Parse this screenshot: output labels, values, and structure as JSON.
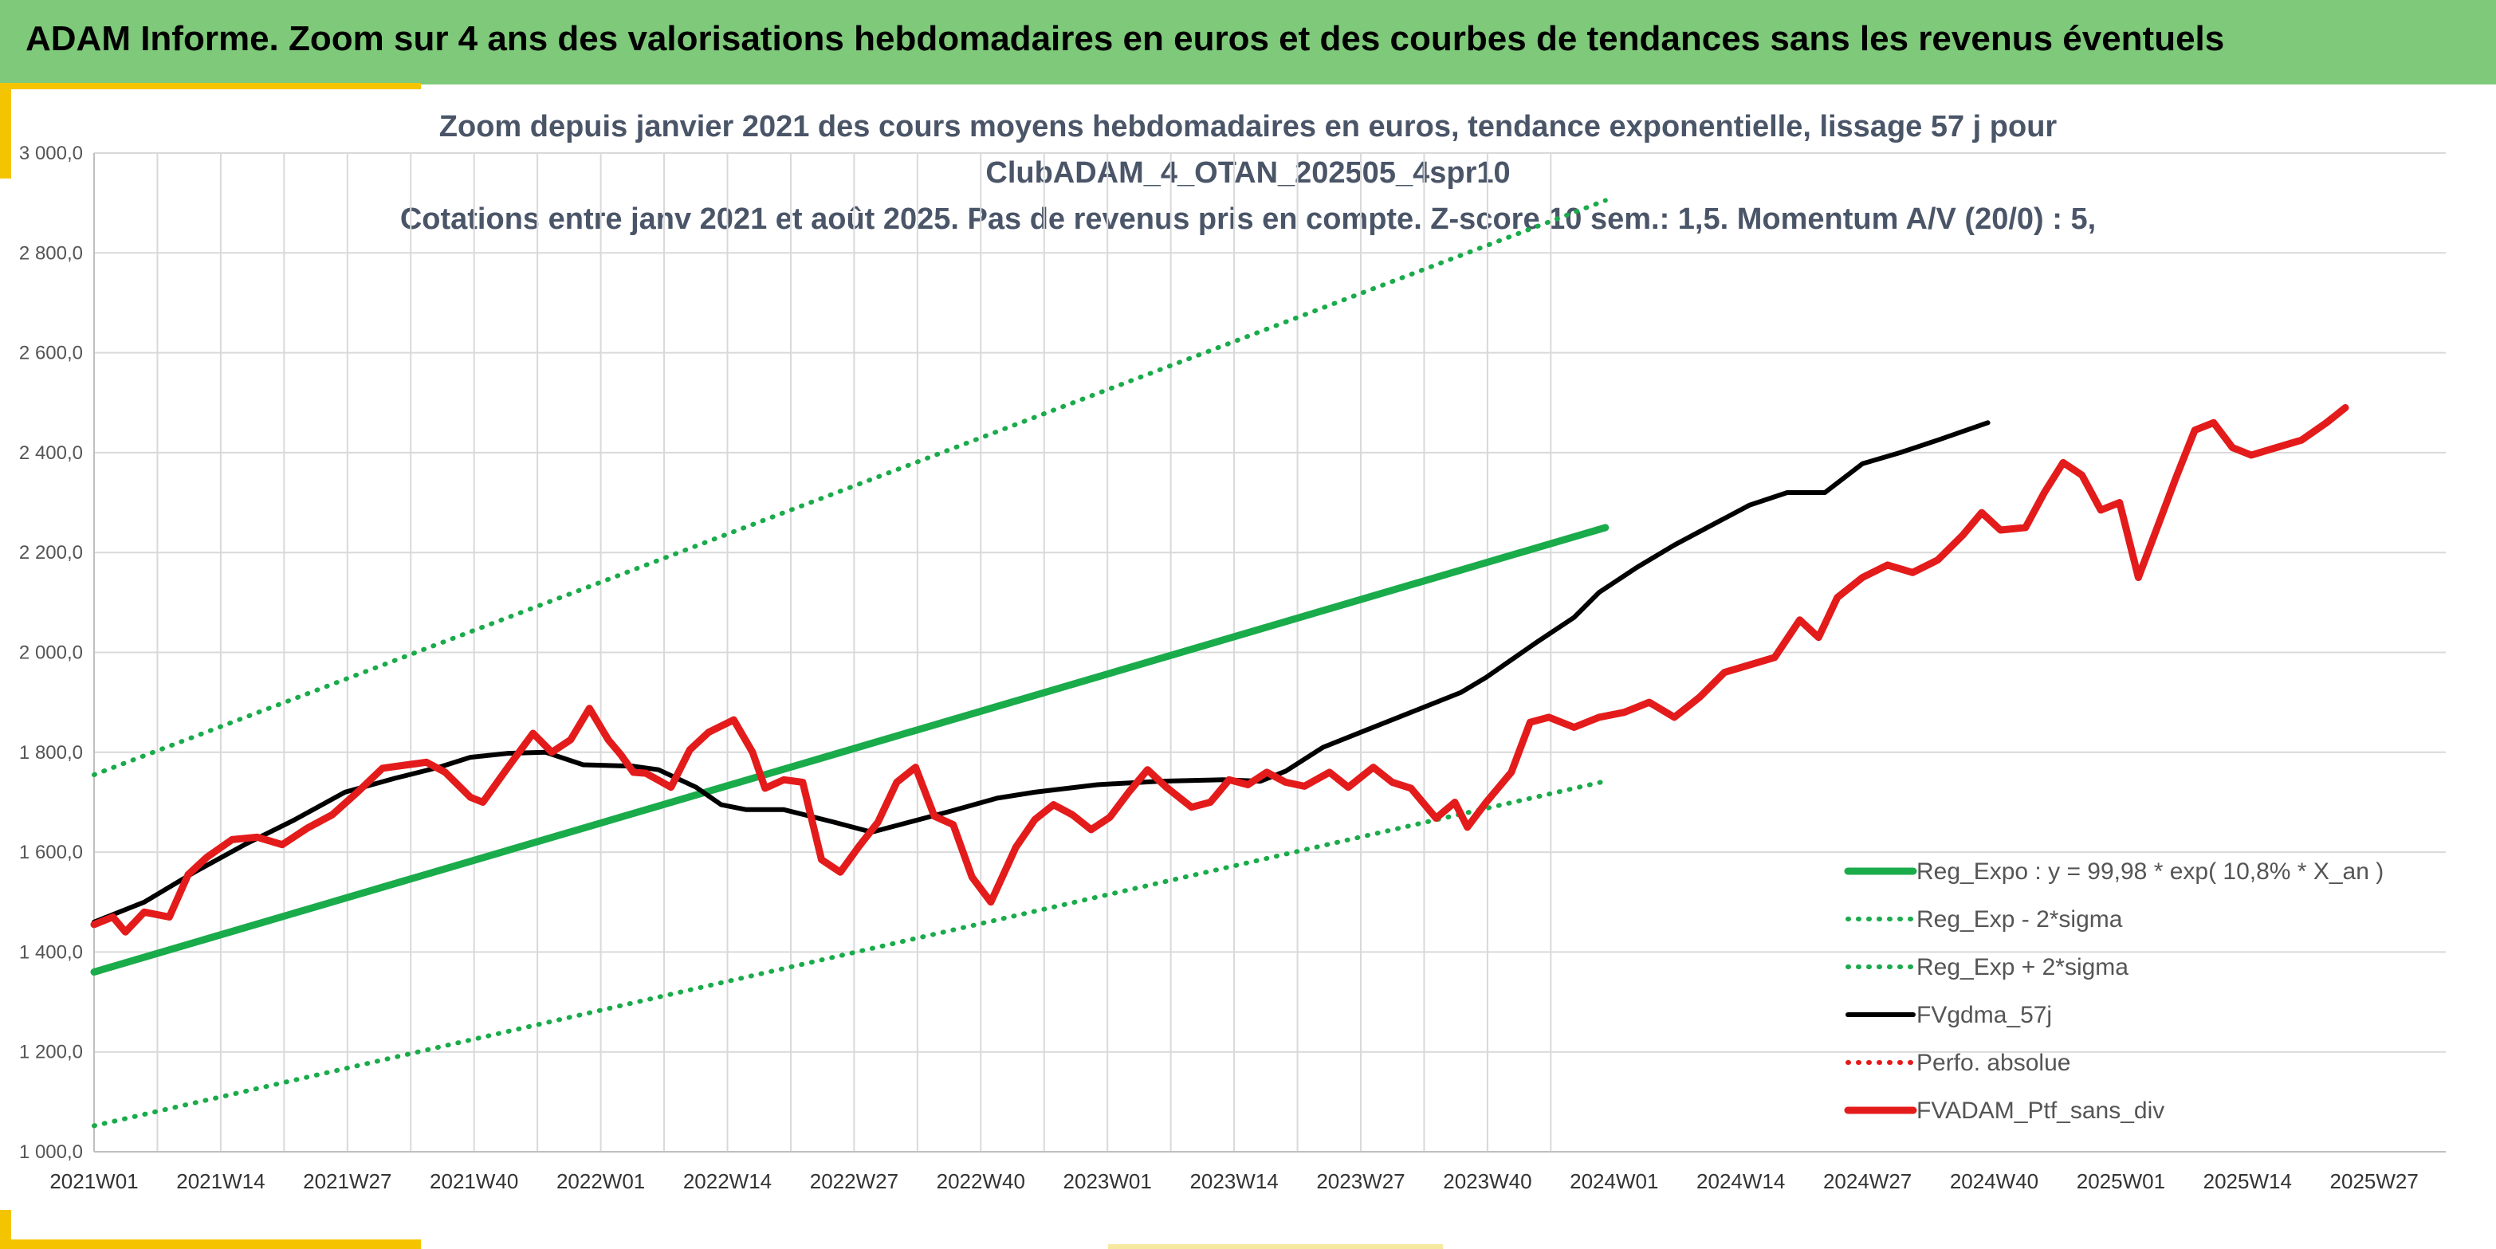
{
  "banner": {
    "title": "ADAM Informe. Zoom sur 4 ans des valorisations hebdomadaires en euros et des courbes de tendances sans les revenus éventuels"
  },
  "colors": {
    "banner": "#7ec97a",
    "accent": "#f5c400",
    "reg_green": "#1aab4b",
    "ma_black": "#000000",
    "portfolio_red": "#e41b1b"
  },
  "chart_data": {
    "type": "line",
    "title_lines": [
      "Zoom depuis janvier 2021 des cours moyens hebdomadaires en euros, tendance exponentielle, lissage 57 j pour",
      "ClubADAM_4_OTAN_202505_4spr10",
      "Cotations entre janv 2021 et août 2025. Pas de revenus pris en compte. Z-score 10 sem.: 1,5. Momentum A/V (20/0) : 5,"
    ],
    "ylim": [
      1000,
      3000
    ],
    "ytick_labels": [
      "1 000,0",
      "1 200,0",
      "1 400,0",
      "1 600,0",
      "1 800,0",
      "2 000,0",
      "2 200,0",
      "2 400,0",
      "2 600,0",
      "2 800,0",
      "3 000,0"
    ],
    "xtick_labels": [
      "2021W01",
      "2021W14",
      "2021W27",
      "2021W40",
      "2022W01",
      "2022W14",
      "2022W27",
      "2022W40",
      "2023W01",
      "2023W14",
      "2023W27",
      "2023W40",
      "2024W01",
      "2024W14",
      "2024W27",
      "2024W40",
      "2025W01",
      "2025W14",
      "2025W27"
    ],
    "x_weeks_total": 241,
    "grid": true,
    "legend_position": "lower-right",
    "series": [
      {
        "name": "Reg_Expo : y = 99,98 * exp( 10,8% *  X_an )",
        "style": "solid-thick",
        "color": "#1aab4b",
        "points": [
          [
            0,
            1360
          ],
          [
            241,
            2250
          ]
        ]
      },
      {
        "name": "Reg_Exp - 2*sigma",
        "style": "dotted",
        "color": "#1aab4b",
        "points": [
          [
            0,
            1052
          ],
          [
            241,
            1742
          ]
        ]
      },
      {
        "name": "Reg_Exp + 2*sigma",
        "style": "dotted",
        "color": "#1aab4b",
        "points": [
          [
            0,
            1755
          ],
          [
            241,
            2905
          ]
        ]
      },
      {
        "name": "FVgdma_57j",
        "style": "solid",
        "color": "#000000",
        "points": [
          [
            0,
            1460
          ],
          [
            8,
            1500
          ],
          [
            16,
            1560
          ],
          [
            24,
            1615
          ],
          [
            32,
            1665
          ],
          [
            40,
            1720
          ],
          [
            48,
            1748
          ],
          [
            55,
            1770
          ],
          [
            60,
            1790
          ],
          [
            66,
            1798
          ],
          [
            72,
            1800
          ],
          [
            78,
            1775
          ],
          [
            86,
            1772
          ],
          [
            90,
            1765
          ],
          [
            96,
            1730
          ],
          [
            100,
            1695
          ],
          [
            104,
            1685
          ],
          [
            110,
            1685
          ],
          [
            118,
            1660
          ],
          [
            124,
            1640
          ],
          [
            130,
            1660
          ],
          [
            136,
            1680
          ],
          [
            144,
            1708
          ],
          [
            150,
            1720
          ],
          [
            160,
            1735
          ],
          [
            170,
            1742
          ],
          [
            180,
            1745
          ],
          [
            186,
            1742
          ],
          [
            190,
            1762
          ],
          [
            196,
            1810
          ],
          [
            202,
            1840
          ],
          [
            210,
            1880
          ],
          [
            218,
            1920
          ],
          [
            222,
            1950
          ],
          [
            226,
            1985
          ],
          [
            230,
            2020
          ],
          [
            236,
            2070
          ],
          [
            240,
            2120
          ],
          [
            246,
            2170
          ],
          [
            252,
            2215
          ],
          [
            258,
            2255
          ],
          [
            264,
            2295
          ],
          [
            270,
            2320
          ],
          [
            276,
            2320
          ],
          [
            282,
            2378
          ],
          [
            288,
            2400
          ],
          [
            294,
            2425
          ],
          [
            302,
            2460
          ]
        ]
      },
      {
        "name": "Perfo. absolue",
        "style": "dotted",
        "color": "#e41b1b",
        "points": []
      },
      {
        "name": "FVADAM_Ptf_sans_div",
        "style": "solid-thick",
        "color": "#e41b1b",
        "points": [
          [
            0,
            1455
          ],
          [
            3,
            1470
          ],
          [
            5,
            1440
          ],
          [
            8,
            1480
          ],
          [
            12,
            1470
          ],
          [
            15,
            1555
          ],
          [
            18,
            1590
          ],
          [
            22,
            1625
          ],
          [
            26,
            1630
          ],
          [
            30,
            1615
          ],
          [
            34,
            1648
          ],
          [
            38,
            1675
          ],
          [
            42,
            1720
          ],
          [
            46,
            1768
          ],
          [
            50,
            1775
          ],
          [
            53,
            1780
          ],
          [
            56,
            1760
          ],
          [
            60,
            1710
          ],
          [
            62,
            1700
          ],
          [
            66,
            1770
          ],
          [
            70,
            1838
          ],
          [
            73,
            1800
          ],
          [
            76,
            1825
          ],
          [
            79,
            1888
          ],
          [
            82,
            1825
          ],
          [
            84,
            1795
          ],
          [
            86,
            1760
          ],
          [
            88,
            1758
          ],
          [
            92,
            1730
          ],
          [
            95,
            1805
          ],
          [
            98,
            1840
          ],
          [
            102,
            1865
          ],
          [
            105,
            1800
          ],
          [
            107,
            1728
          ],
          [
            110,
            1745
          ],
          [
            113,
            1740
          ],
          [
            116,
            1585
          ],
          [
            119,
            1560
          ],
          [
            122,
            1612
          ],
          [
            125,
            1660
          ],
          [
            128,
            1740
          ],
          [
            131,
            1770
          ],
          [
            134,
            1672
          ],
          [
            137,
            1655
          ],
          [
            140,
            1550
          ],
          [
            143,
            1500
          ],
          [
            147,
            1610
          ],
          [
            150,
            1665
          ],
          [
            153,
            1695
          ],
          [
            156,
            1675
          ],
          [
            159,
            1645
          ],
          [
            162,
            1670
          ],
          [
            165,
            1720
          ],
          [
            168,
            1765
          ],
          [
            171,
            1730
          ],
          [
            175,
            1690
          ],
          [
            178,
            1700
          ],
          [
            181,
            1745
          ],
          [
            184,
            1735
          ],
          [
            187,
            1760
          ],
          [
            190,
            1740
          ],
          [
            193,
            1732
          ],
          [
            197,
            1760
          ],
          [
            200,
            1730
          ],
          [
            204,
            1770
          ],
          [
            207,
            1740
          ],
          [
            210,
            1728
          ],
          [
            214,
            1668
          ],
          [
            217,
            1700
          ],
          [
            219,
            1650
          ],
          [
            222,
            1700
          ],
          [
            226,
            1760
          ],
          [
            229,
            1860
          ],
          [
            232,
            1870
          ],
          [
            236,
            1850
          ],
          [
            240,
            1870
          ],
          [
            244,
            1880
          ],
          [
            248,
            1900
          ],
          [
            252,
            1870
          ],
          [
            256,
            1910
          ],
          [
            260,
            1960
          ],
          [
            264,
            1975
          ],
          [
            268,
            1990
          ],
          [
            272,
            2065
          ],
          [
            275,
            2030
          ],
          [
            278,
            2110
          ],
          [
            282,
            2150
          ],
          [
            286,
            2175
          ],
          [
            290,
            2160
          ],
          [
            294,
            2185
          ],
          [
            298,
            2235
          ],
          [
            301,
            2280
          ],
          [
            304,
            2245
          ],
          [
            308,
            2250
          ],
          [
            311,
            2320
          ],
          [
            314,
            2380
          ],
          [
            317,
            2355
          ],
          [
            320,
            2285
          ],
          [
            323,
            2300
          ],
          [
            326,
            2150
          ],
          [
            329,
            2250
          ],
          [
            332,
            2350
          ],
          [
            335,
            2445
          ],
          [
            338,
            2460
          ],
          [
            341,
            2410
          ],
          [
            344,
            2395
          ],
          [
            348,
            2410
          ],
          [
            352,
            2425
          ],
          [
            356,
            2460
          ],
          [
            359,
            2490
          ]
        ]
      }
    ]
  }
}
